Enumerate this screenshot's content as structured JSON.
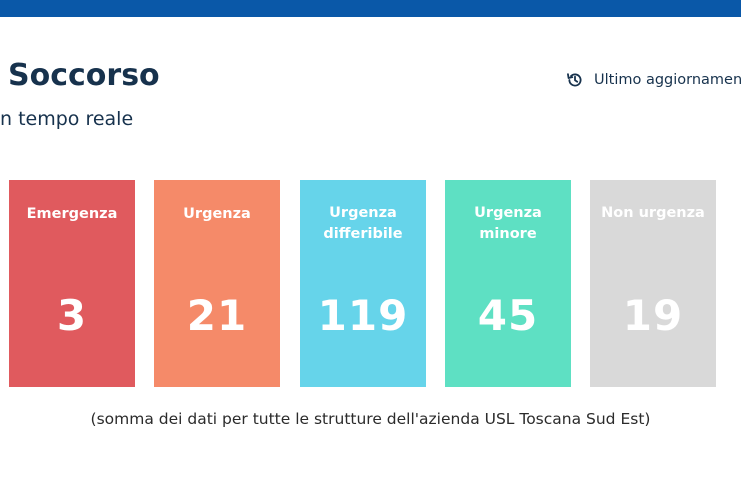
{
  "header": {
    "title": "Soccorso",
    "subtitle": "n tempo reale",
    "last_update_label": "Ultimo aggiornamento"
  },
  "cards": [
    {
      "label": "Emergenza",
      "value": "3",
      "color": "#e05a5e"
    },
    {
      "label": "Urgenza",
      "value": "21",
      "color": "#f58a69"
    },
    {
      "label": "Urgenza differibile",
      "value": "119",
      "color": "#66d4ea"
    },
    {
      "label": "Urgenza minore",
      "value": "45",
      "color": "#5ee0c3"
    },
    {
      "label": "Non urgenza",
      "value": "19",
      "color": "#d9d9d9"
    }
  ],
  "footnote": "(somma dei dati per tutte le strutture dell'azienda USL Toscana Sud Est)",
  "colors": {
    "topbar": "#0a58a8",
    "text": "#17324d"
  }
}
